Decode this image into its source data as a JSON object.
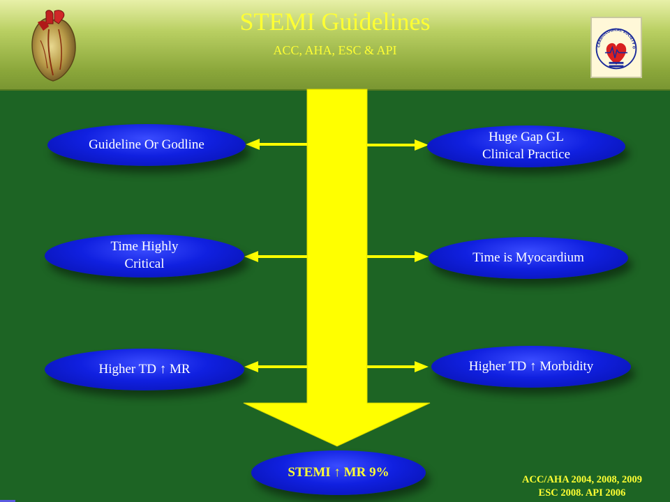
{
  "slide": {
    "title": "STEMI Guidelines",
    "subtitle": "ACC, AHA, ESC & API",
    "logo_caption": "CARDIOLOGICAL SOCIETY OF INDIA"
  },
  "left_ovals": [
    {
      "label": "Guideline Or Godline"
    },
    {
      "label": "Time Highly\nCritical"
    },
    {
      "label": "Higher TD ↑ MR"
    }
  ],
  "right_ovals": [
    {
      "label": "Huge Gap GL\nClinical Practice"
    },
    {
      "label": "Time  is Myocardium"
    },
    {
      "label": "Higher TD ↑ Morbidity"
    }
  ],
  "bottom_oval": {
    "label": "STEMI ↑ MR 9%"
  },
  "references": {
    "line1": "ACC/AHA 2004, 2008, 2009",
    "line2": "ESC 2008. API 2006"
  },
  "colors": {
    "background": "#1d6424",
    "title_text": "#ffff33",
    "arrow": "#ffff00",
    "oval": "#1020e0",
    "oval_text": "#ffffff"
  }
}
